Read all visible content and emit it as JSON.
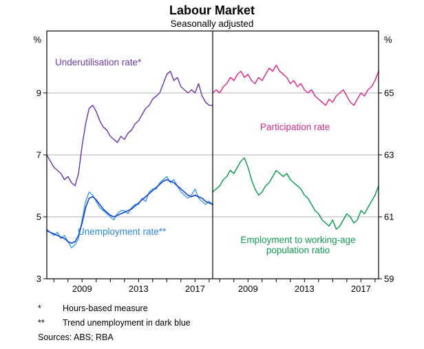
{
  "title": "Labour Market",
  "subtitle": "Seasonally adjusted",
  "chart_data": {
    "type": "line",
    "x_start": 2006.5,
    "x_step": 0.25,
    "x_end": 2018.25,
    "x_ticks_labeled": [
      2009,
      2013,
      2017
    ],
    "left_axis": {
      "unit": "%",
      "min": 3,
      "max": 11,
      "ticks": [
        3,
        5,
        7,
        9
      ]
    },
    "right_axis": {
      "unit": "%",
      "min": 59,
      "max": 67,
      "ticks": [
        59,
        61,
        63,
        65
      ]
    },
    "grid": true,
    "grid_color": "#b3b3b3",
    "frame_color": "#000000",
    "panels": [
      {
        "axis": "left",
        "series": [
          {
            "name": "Underutilisation rate*",
            "color": "#6E3FA8",
            "width": 1.5,
            "values": [
              7.0,
              6.8,
              6.6,
              6.5,
              6.4,
              6.2,
              6.3,
              6.1,
              6.0,
              6.4,
              7.3,
              8.0,
              8.5,
              8.6,
              8.4,
              8.1,
              7.9,
              7.8,
              7.6,
              7.5,
              7.4,
              7.6,
              7.5,
              7.7,
              7.8,
              8.0,
              8.1,
              8.3,
              8.5,
              8.6,
              8.8,
              8.9,
              9.0,
              9.3,
              9.6,
              9.7,
              9.4,
              9.5,
              9.2,
              9.1,
              9.0,
              9.1,
              9.0,
              9.3,
              8.9,
              8.7,
              8.6,
              8.6
            ]
          },
          {
            "name": "Unemployment rate**",
            "color": "#3E9BE4",
            "width": 1.4,
            "values": [
              4.6,
              4.5,
              4.4,
              4.5,
              4.3,
              4.4,
              4.2,
              4.0,
              4.1,
              4.3,
              4.9,
              5.5,
              5.8,
              5.7,
              5.5,
              5.3,
              5.2,
              5.1,
              5.0,
              4.9,
              5.1,
              5.2,
              5.2,
              5.1,
              5.3,
              5.4,
              5.4,
              5.6,
              5.5,
              5.8,
              5.9,
              5.9,
              6.1,
              6.2,
              6.3,
              6.1,
              6.2,
              6.0,
              5.8,
              5.7,
              5.6,
              5.7,
              5.9,
              5.6,
              5.5,
              5.4,
              5.5,
              5.4
            ]
          },
          {
            "name": "Trend unemployment",
            "color": "#1C49C8",
            "width": 1.7,
            "values": [
              4.55,
              4.5,
              4.45,
              4.4,
              4.35,
              4.3,
              4.2,
              4.15,
              4.2,
              4.4,
              4.8,
              5.3,
              5.6,
              5.65,
              5.55,
              5.4,
              5.25,
              5.15,
              5.05,
              5.0,
              5.05,
              5.1,
              5.15,
              5.2,
              5.25,
              5.35,
              5.45,
              5.55,
              5.65,
              5.75,
              5.85,
              5.95,
              6.05,
              6.15,
              6.2,
              6.15,
              6.1,
              6.0,
              5.9,
              5.8,
              5.7,
              5.65,
              5.7,
              5.65,
              5.6,
              5.5,
              5.45,
              5.4
            ]
          }
        ],
        "labels": [
          {
            "text": "Underutilisation rate*",
            "color": "#6E3FA8"
          },
          {
            "text": "Unemployment rate**",
            "color": "#2E86DC"
          }
        ]
      },
      {
        "axis": "right",
        "series": [
          {
            "name": "Participation rate",
            "color": "#D42E8C",
            "width": 1.5,
            "values": [
              65.0,
              65.1,
              65.0,
              65.2,
              65.3,
              65.5,
              65.4,
              65.6,
              65.7,
              65.5,
              65.6,
              65.4,
              65.3,
              65.5,
              65.4,
              65.6,
              65.8,
              65.7,
              65.9,
              65.7,
              65.6,
              65.5,
              65.3,
              65.4,
              65.2,
              65.3,
              65.1,
              65.0,
              65.1,
              64.9,
              64.8,
              64.7,
              64.6,
              64.8,
              64.7,
              64.9,
              65.0,
              65.1,
              64.9,
              64.7,
              64.6,
              64.8,
              65.0,
              64.9,
              65.1,
              65.2,
              65.4,
              65.7
            ]
          },
          {
            "name": "Employment to working-age population ratio",
            "color": "#109B52",
            "width": 1.5,
            "values": [
              61.8,
              61.9,
              62.0,
              62.2,
              62.3,
              62.5,
              62.4,
              62.6,
              62.8,
              62.9,
              62.6,
              62.2,
              61.9,
              61.7,
              61.8,
              62.0,
              62.1,
              62.3,
              62.5,
              62.4,
              62.3,
              62.4,
              62.2,
              62.1,
              62.0,
              61.9,
              61.7,
              61.6,
              61.4,
              61.2,
              61.1,
              60.9,
              60.8,
              60.7,
              60.9,
              60.6,
              60.7,
              60.9,
              61.1,
              61.0,
              60.8,
              60.9,
              61.2,
              61.1,
              61.3,
              61.5,
              61.7,
              62.0
            ]
          }
        ],
        "labels": [
          {
            "text": "Participation rate",
            "color": "#D42E8C"
          },
          {
            "text": "Employment to working-age population ratio",
            "lines": [
              "Employment to working-age",
              "population ratio"
            ],
            "color": "#109B52"
          }
        ]
      }
    ]
  },
  "footnotes": [
    {
      "marker": "*",
      "text": "Hours-based measure"
    },
    {
      "marker": "**",
      "text": "Trend unemployment in dark blue"
    }
  ],
  "sources": {
    "label": "Sources:",
    "text": "ABS; RBA"
  }
}
